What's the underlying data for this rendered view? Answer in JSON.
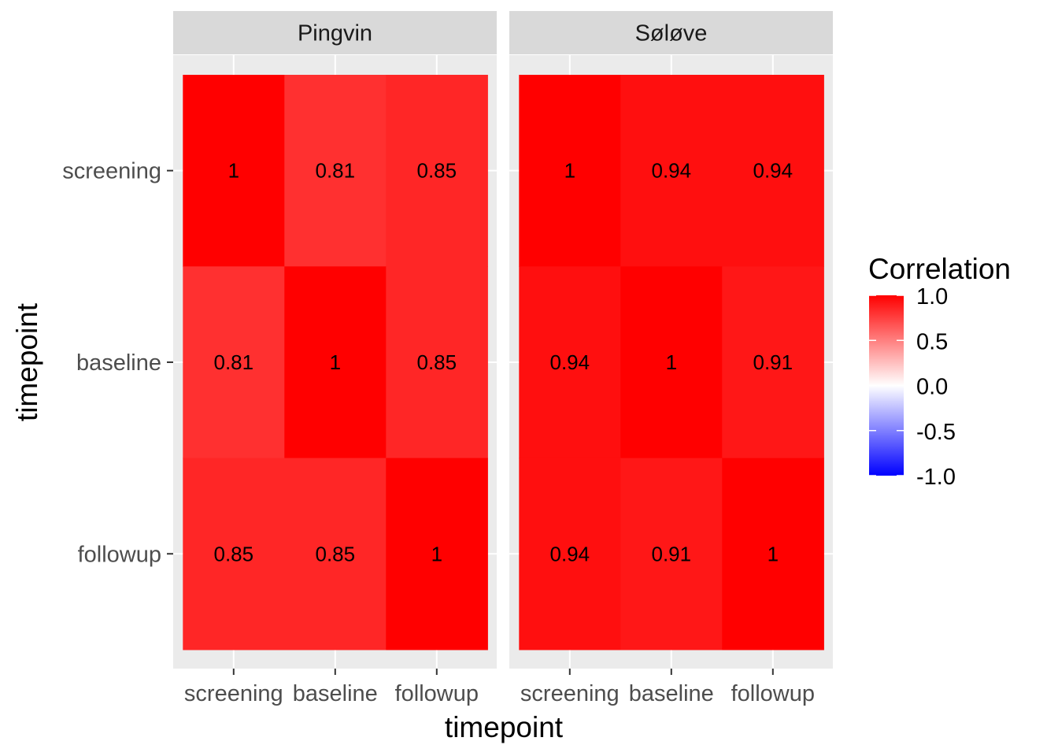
{
  "chart_data": {
    "type": "heatmap",
    "x_categories": [
      "screening",
      "baseline",
      "followup"
    ],
    "y_categories": [
      "screening",
      "baseline",
      "followup"
    ],
    "xlabel": "timepoint",
    "ylabel": "timepoint",
    "panels": [
      {
        "name": "Pingvin",
        "values": [
          [
            1,
            0.81,
            0.85
          ],
          [
            0.81,
            1,
            0.85
          ],
          [
            0.85,
            0.85,
            1
          ]
        ],
        "labels": [
          [
            "1",
            "0.81",
            "0.85"
          ],
          [
            "0.81",
            "1",
            "0.85"
          ],
          [
            "0.85",
            "0.85",
            "1"
          ]
        ]
      },
      {
        "name": "Søløve",
        "values": [
          [
            1,
            0.94,
            0.94
          ],
          [
            0.94,
            1,
            0.91
          ],
          [
            0.94,
            0.91,
            1
          ]
        ],
        "labels": [
          [
            "1",
            "0.94",
            "0.94"
          ],
          [
            "0.94",
            "1",
            "0.91"
          ],
          [
            "0.94",
            "0.91",
            "1"
          ]
        ]
      }
    ],
    "legend": {
      "title": "Correlation",
      "limits": [
        -1,
        1
      ],
      "breaks": [
        1.0,
        0.5,
        0.0,
        -0.5,
        -1.0
      ],
      "break_labels": [
        "1.0",
        "0.5",
        "0.0",
        "-0.5",
        "-1.0"
      ],
      "low_color": "#0000ff",
      "mid_color": "#ffffff",
      "high_color": "#ff0000",
      "placement": "right"
    }
  }
}
